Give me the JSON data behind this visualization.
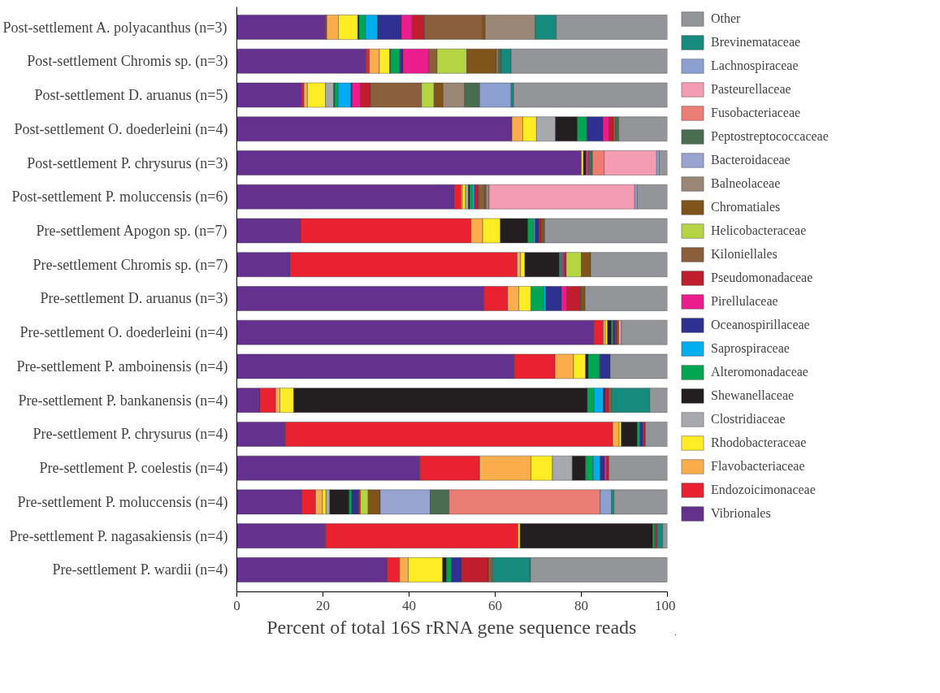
{
  "chart_data": {
    "type": "bar",
    "orientation": "horizontal",
    "stacked": true,
    "xlabel": "Percent of total 16S rRNA gene sequence reads",
    "xlim": [
      0,
      100
    ],
    "xticks": [
      0,
      20,
      40,
      60,
      80,
      100
    ],
    "grid": false,
    "legend": "right",
    "categories": [
      "Post-settlement A. polyacanthus (n=3)",
      "Post-settlement Chromis sp. (n=3)",
      "Post-settlement D. aruanus (n=5)",
      "Post-settlement O. doederleini (n=4)",
      "Post-settlement P. chrysurus (n=3)",
      "Post-settlement P. moluccensis (n=6)",
      "Pre-settlement Apogon sp. (n=7)",
      "Pre-settlement Chromis sp. (n=7)",
      "Pre-settlement D. aruanus (n=3)",
      "Pre-settlement O. doederleini (n=4)",
      "Pre-settlement P. amboinensis (n=4)",
      "Pre-settlement P. bankanensis (n=4)",
      "Pre-settlement P. chrysurus (n=4)",
      "Pre-settlement P. coelestis (n=4)",
      "Pre-settlement P. moluccensis (n=4)",
      "Pre-settlement P. nagasakiensis (n=4)",
      "Pre-settlement P. wardii (n=4)"
    ],
    "series": [
      {
        "name": "Vibrionales",
        "color": "#65318e",
        "values": [
          20.6,
          30.0,
          15.1,
          63.9,
          80.0,
          50.5,
          14.8,
          12.4,
          57.4,
          82.9,
          64.4,
          5.4,
          11.2,
          42.5,
          15.1,
          20.6,
          34.9
        ]
      },
      {
        "name": "Endozoicimonaceae",
        "color": "#ea2130",
        "values": [
          0.3,
          0.8,
          0.5,
          null,
          null,
          1.6,
          39.6,
          52.7,
          5.5,
          2.2,
          9.5,
          3.6,
          76.1,
          13.9,
          3.2,
          44.7,
          2.9
        ]
      },
      {
        "name": "Flavobacteriaceae",
        "color": "#fbad4b",
        "values": [
          2.7,
          2.3,
          0.8,
          2.5,
          null,
          0.3,
          2.7,
          0.8,
          2.6,
          0.5,
          4.3,
          1.0,
          1.5,
          11.9,
          1.6,
          null,
          2.0
        ]
      },
      {
        "name": "Rhodobacteraceae",
        "color": "#ffec24",
        "values": [
          4.5,
          2.4,
          4.2,
          3.2,
          0.5,
          0.7,
          4.1,
          1.0,
          2.8,
          0.5,
          2.8,
          3.2,
          0.5,
          5.0,
          0.8,
          0.5,
          8.0
        ]
      },
      {
        "name": "Clostridiaceae",
        "color": "#a7a9ac",
        "values": [
          null,
          null,
          1.9,
          4.4,
          null,
          0.7,
          null,
          null,
          null,
          null,
          null,
          null,
          null,
          4.6,
          0.9,
          null,
          null
        ]
      },
      {
        "name": "Shewanellaceae",
        "color": "#231f20",
        "values": [
          0.3,
          0.2,
          0.2,
          5.1,
          0.6,
          0.3,
          6.4,
          8.0,
          null,
          0.9,
          0.6,
          68.2,
          3.7,
          3.1,
          4.5,
          30.8,
          0.9
        ]
      },
      {
        "name": "Alteromonadaceae",
        "color": "#00a651",
        "values": [
          1.5,
          2.2,
          0.8,
          2.2,
          null,
          0.6,
          1.3,
          0.4,
          3.0,
          0.4,
          2.7,
          1.6,
          0.6,
          1.8,
          0.6,
          0.5,
          1.1
        ]
      },
      {
        "name": "Saprospiraceae",
        "color": "#00aeef",
        "values": [
          2.8,
          null,
          3.0,
          null,
          null,
          0.5,
          0.4,
          0.3,
          0.5,
          null,
          null,
          2.1,
          null,
          1.6,
          null,
          null,
          null
        ]
      },
      {
        "name": "Oceanospirillaceae",
        "color": "#2e3192",
        "values": [
          5.5,
          0.7,
          0.3,
          3.7,
          null,
          null,
          0.8,
          null,
          3.6,
          0.5,
          2.4,
          0.5,
          0.7,
          1.0,
          1.5,
          null,
          2.4
        ]
      },
      {
        "name": "Pirellulaceae",
        "color": "#ec1c8c",
        "values": [
          2.5,
          6.0,
          1.9,
          1.4,
          0.6,
          null,
          null,
          0.4,
          1.2,
          null,
          null,
          null,
          null,
          0.5,
          null,
          null,
          null
        ]
      },
      {
        "name": "Pseudomonadaceae",
        "color": "#be1e2d",
        "values": [
          2.9,
          null,
          2.4,
          1.1,
          null,
          0.9,
          0.6,
          0.5,
          3.1,
          0.3,
          null,
          0.8,
          0.6,
          0.5,
          0.5,
          0.5,
          6.2
        ]
      },
      {
        "name": "Kiloniellales",
        "color": "#8b5e3c",
        "values": [
          13.5,
          1.9,
          11.8,
          0.5,
          null,
          1.4,
          null,
          null,
          0.2,
          null,
          null,
          0.6,
          null,
          null,
          null,
          null,
          1.0
        ]
      },
      {
        "name": "Helicobacteraceae",
        "color": "#b5d444",
        "values": [
          null,
          6.9,
          2.9,
          null,
          null,
          null,
          null,
          3.5,
          null,
          null,
          null,
          null,
          null,
          null,
          1.8,
          null,
          null
        ]
      },
      {
        "name": "Chromatiales",
        "color": "#7f541b",
        "values": [
          0.6,
          6.9,
          2.1,
          null,
          null,
          0.4,
          0.8,
          2.2,
          1.0,
          0.5,
          null,
          null,
          null,
          null,
          2.8,
          null,
          null
        ]
      },
      {
        "name": "Balneolaceae",
        "color": "#998675",
        "values": [
          11.6,
          0.4,
          5.0,
          null,
          null,
          0.7,
          null,
          null,
          null,
          null,
          null,
          null,
          null,
          null,
          null,
          null,
          null
        ]
      },
      {
        "name": "Bacteroidaceae",
        "color": "#99a3d0",
        "values": [
          null,
          null,
          null,
          null,
          null,
          null,
          null,
          null,
          null,
          null,
          null,
          null,
          null,
          null,
          11.6,
          null,
          null
        ]
      },
      {
        "name": "Peptostreptococcaceae",
        "color": "#4a6d52",
        "values": [
          null,
          0.7,
          3.5,
          0.7,
          0.9,
          null,
          null,
          null,
          null,
          null,
          null,
          null,
          null,
          null,
          4.4,
          null,
          null
        ]
      },
      {
        "name": "Fusobacteriaceae",
        "color": "#ec7d75",
        "values": [
          null,
          null,
          null,
          null,
          2.7,
          null,
          null,
          null,
          null,
          null,
          null,
          null,
          null,
          null,
          35.1,
          null,
          null
        ]
      },
      {
        "name": "Pasteurellaceae",
        "color": "#f49cb1",
        "values": [
          null,
          null,
          null,
          null,
          12.2,
          33.8,
          null,
          null,
          null,
          0.6,
          null,
          null,
          null,
          null,
          null,
          null,
          null
        ]
      },
      {
        "name": "Lachnospiraceae",
        "color": "#8ba0d0",
        "values": [
          null,
          null,
          7.3,
          null,
          0.6,
          0.6,
          null,
          null,
          null,
          null,
          null,
          null,
          null,
          null,
          2.6,
          null,
          null
        ]
      },
      {
        "name": "Brevinemataceae",
        "color": "#178a7e",
        "values": [
          4.9,
          2.3,
          0.6,
          null,
          null,
          null,
          null,
          null,
          null,
          null,
          null,
          8.9,
          null,
          null,
          0.6,
          1.3,
          8.8
        ]
      },
      {
        "name": "Other",
        "color": "#939598",
        "values": [
          25.8,
          36.3,
          35.7,
          11.3,
          1.9,
          7.0,
          28.5,
          17.8,
          19.1,
          10.7,
          13.3,
          4.1,
          5.1,
          13.6,
          12.4,
          1.1,
          31.8
        ]
      }
    ]
  }
}
